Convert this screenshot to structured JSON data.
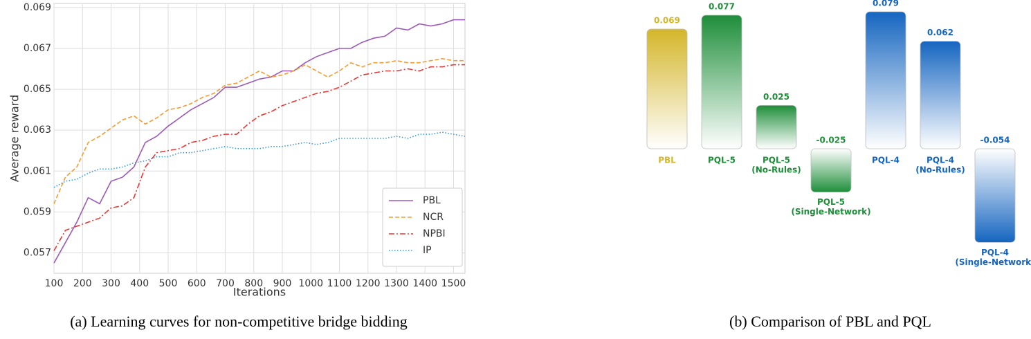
{
  "chart_data": [
    {
      "type": "line",
      "title": "(a) Learning curves for non-competitive bridge bidding",
      "xlabel": "Iterations",
      "ylabel": "Average reward",
      "x": [
        100,
        140,
        180,
        220,
        260,
        300,
        340,
        380,
        420,
        460,
        500,
        540,
        580,
        620,
        660,
        700,
        740,
        780,
        820,
        860,
        900,
        940,
        980,
        1020,
        1060,
        1100,
        1140,
        1180,
        1220,
        1260,
        1300,
        1340,
        1380,
        1420,
        1460,
        1500,
        1540
      ],
      "xlim": [
        100,
        1540
      ],
      "xticks": [
        100,
        200,
        300,
        400,
        500,
        600,
        700,
        800,
        900,
        1000,
        1100,
        1200,
        1300,
        1400,
        1500
      ],
      "ylim": [
        0.056,
        0.0692
      ],
      "yticks": [
        0.057,
        0.059,
        0.061,
        0.063,
        0.065,
        0.067,
        0.069
      ],
      "grid": true,
      "legend": "lower right",
      "series": [
        {
          "name": "PBL",
          "color": "#9b59b6",
          "style": "solid",
          "values": [
            0.0565,
            0.0575,
            0.0585,
            0.0597,
            0.0594,
            0.0605,
            0.0607,
            0.0612,
            0.0624,
            0.0627,
            0.0632,
            0.0636,
            0.064,
            0.0643,
            0.0646,
            0.0651,
            0.0651,
            0.0653,
            0.0655,
            0.0656,
            0.0659,
            0.0659,
            0.0663,
            0.0666,
            0.0668,
            0.067,
            0.067,
            0.0673,
            0.0675,
            0.0676,
            0.068,
            0.0679,
            0.0682,
            0.0681,
            0.0682,
            0.0684,
            0.0684
          ]
        },
        {
          "name": "NCR",
          "color": "#f39c33",
          "style": "dashed",
          "values": [
            0.0594,
            0.0607,
            0.0612,
            0.0624,
            0.0627,
            0.0631,
            0.0635,
            0.0637,
            0.0633,
            0.0636,
            0.064,
            0.0641,
            0.0643,
            0.0646,
            0.0648,
            0.0652,
            0.0653,
            0.0656,
            0.0659,
            0.0656,
            0.0657,
            0.0659,
            0.0662,
            0.0659,
            0.0656,
            0.0659,
            0.0663,
            0.0661,
            0.0663,
            0.0663,
            0.0664,
            0.0663,
            0.0663,
            0.0664,
            0.0665,
            0.0664,
            0.0664
          ]
        },
        {
          "name": "NPBI",
          "color": "#e53935",
          "style": "dashdot",
          "values": [
            0.0571,
            0.0581,
            0.0583,
            0.0585,
            0.0587,
            0.0592,
            0.0593,
            0.0597,
            0.0612,
            0.0619,
            0.062,
            0.0621,
            0.0624,
            0.0625,
            0.0627,
            0.0628,
            0.0628,
            0.0633,
            0.0637,
            0.0639,
            0.0642,
            0.0644,
            0.0646,
            0.0648,
            0.0649,
            0.0651,
            0.0654,
            0.0657,
            0.0658,
            0.0659,
            0.0659,
            0.066,
            0.0659,
            0.0661,
            0.0661,
            0.0662,
            0.0662
          ]
        },
        {
          "name": "IP",
          "color": "#3498db",
          "style": "dotted",
          "values": [
            0.0602,
            0.0605,
            0.0606,
            0.0609,
            0.0611,
            0.0611,
            0.0612,
            0.0614,
            0.0615,
            0.0617,
            0.0617,
            0.0619,
            0.0619,
            0.062,
            0.0621,
            0.0622,
            0.0621,
            0.0621,
            0.0621,
            0.0622,
            0.0622,
            0.0623,
            0.0624,
            0.0623,
            0.0624,
            0.0626,
            0.0626,
            0.0626,
            0.0626,
            0.0626,
            0.0627,
            0.0626,
            0.0628,
            0.0628,
            0.0629,
            0.0628,
            0.0627
          ]
        }
      ]
    },
    {
      "type": "bar",
      "title": "(b) Comparison of PBL and PQL",
      "categories": [
        [
          "PBL"
        ],
        [
          "PQL-5"
        ],
        [
          "PQL-5",
          "(No-Rules)"
        ],
        [
          "PQL-5",
          "(Single-Network)"
        ],
        [
          "PQL-4"
        ],
        [
          "PQL-4",
          "(No-Rules)"
        ],
        [
          "PQL-4",
          "(Single-Network)"
        ]
      ],
      "values": [
        0.069,
        0.077,
        0.025,
        -0.025,
        0.079,
        0.062,
        -0.054
      ],
      "colors": [
        "#d4b62a",
        "#1e8e3a",
        "#1e8e3a",
        "#1e8e3a",
        "#1565c0",
        "#1565c0",
        "#1565c0"
      ]
    }
  ]
}
